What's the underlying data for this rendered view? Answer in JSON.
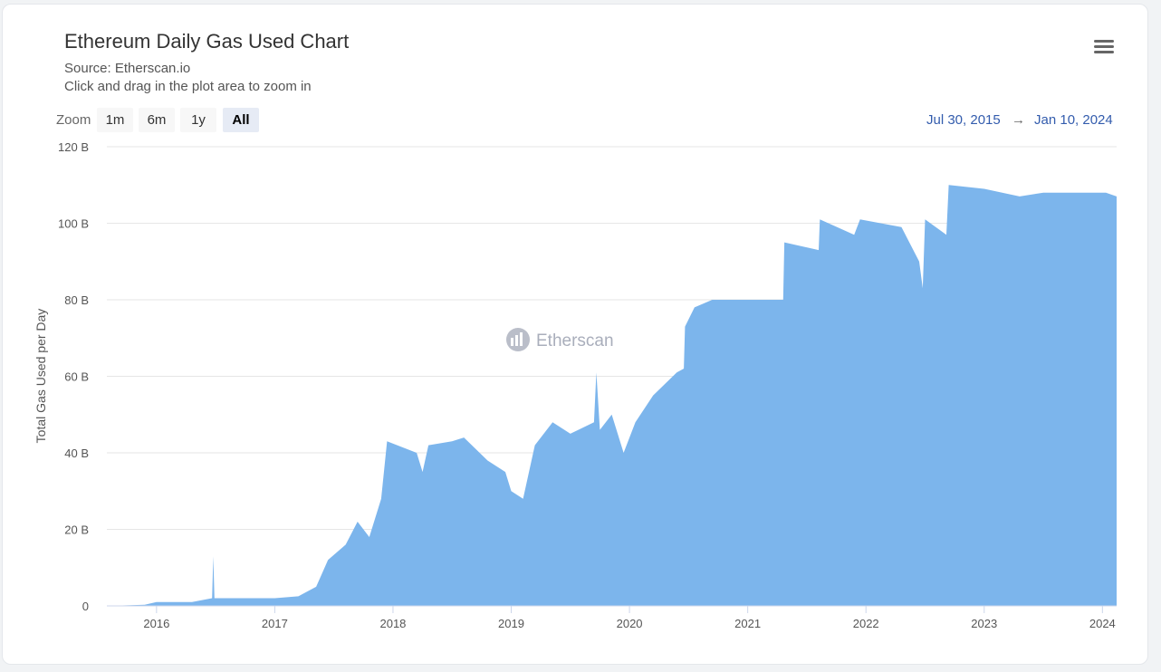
{
  "header": {
    "title": "Ethereum Daily Gas Used Chart",
    "source": "Source: Etherscan.io",
    "hint": "Click and drag in the plot area to zoom in",
    "menu_icon": "hamburger-icon"
  },
  "zoom": {
    "label": "Zoom",
    "buttons": [
      "1m",
      "6m",
      "1y",
      "All"
    ],
    "active": "All"
  },
  "range": {
    "from": "Jul 30, 2015",
    "arrow": "→",
    "to": "Jan 10, 2024"
  },
  "watermark": "Etherscan",
  "colors": {
    "area": "#7cb5ec",
    "range_text": "#335cad"
  },
  "chart_data": {
    "type": "area",
    "title": "Ethereum Daily Gas Used Chart",
    "xlabel": "",
    "ylabel": "Total Gas Used per Day",
    "ylim": [
      0,
      120
    ],
    "xlim": [
      2015.58,
      2024.12
    ],
    "yticks": [
      0,
      20,
      40,
      60,
      80,
      100,
      120
    ],
    "ytick_labels": [
      "0",
      "20 B",
      "40 B",
      "60 B",
      "80 B",
      "100 B",
      "120 B"
    ],
    "xticks": [
      2016,
      2017,
      2018,
      2019,
      2020,
      2021,
      2022,
      2023,
      2024
    ],
    "xtick_labels": [
      "2016",
      "2017",
      "2018",
      "2019",
      "2020",
      "2021",
      "2022",
      "2023",
      "2024"
    ],
    "unit": "Billion gas",
    "x": [
      2015.58,
      2015.9,
      2016.0,
      2016.3,
      2016.47,
      2016.48,
      2016.49,
      2016.5,
      2017.0,
      2017.2,
      2017.35,
      2017.45,
      2017.6,
      2017.7,
      2017.8,
      2017.9,
      2017.95,
      2018.2,
      2018.25,
      2018.3,
      2018.5,
      2018.6,
      2018.8,
      2018.95,
      2019.0,
      2019.1,
      2019.2,
      2019.35,
      2019.5,
      2019.7,
      2019.72,
      2019.75,
      2019.85,
      2019.95,
      2020.05,
      2020.2,
      2020.4,
      2020.46,
      2020.47,
      2020.55,
      2020.7,
      2021.0,
      2021.3,
      2021.31,
      2021.6,
      2021.61,
      2021.9,
      2021.95,
      2022.3,
      2022.45,
      2022.48,
      2022.5,
      2022.68,
      2022.7,
      2023.0,
      2023.3,
      2023.5,
      2024.03,
      2024.12
    ],
    "values": [
      0,
      0.3,
      1,
      1,
      2,
      13,
      2,
      2,
      2,
      2.5,
      5,
      12,
      16,
      22,
      18,
      28,
      43,
      40,
      35,
      42,
      43,
      44,
      38,
      35,
      30,
      28,
      42,
      48,
      45,
      48,
      61,
      46,
      50,
      40,
      48,
      55,
      61,
      62,
      73,
      78,
      80,
      80,
      80,
      95,
      93,
      101,
      97,
      101,
      99,
      90,
      83,
      101,
      97,
      110,
      109,
      107,
      108,
      108,
      107
    ]
  }
}
